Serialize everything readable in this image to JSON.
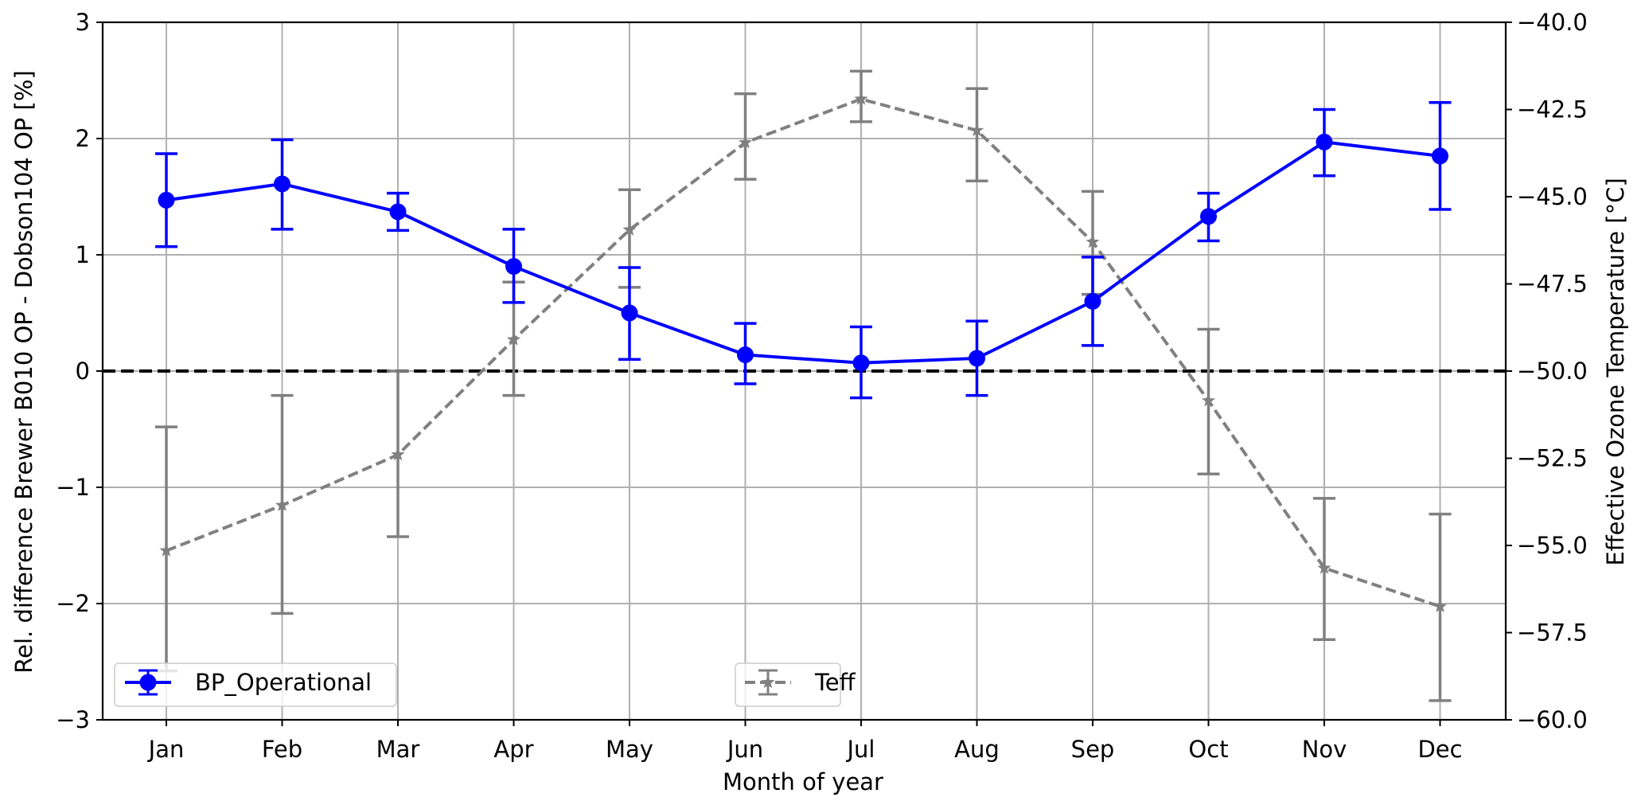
{
  "chart_data": {
    "type": "line",
    "xlabel": "Month of year",
    "ylabel_left": "Rel. difference Brewer B010 OP - Dobson104 OP [%]",
    "ylabel_right": "Effective Ozone Temperature [°C]",
    "categories": [
      "Jan",
      "Feb",
      "Mar",
      "Apr",
      "May",
      "Jun",
      "Jul",
      "Aug",
      "Sep",
      "Oct",
      "Nov",
      "Dec"
    ],
    "ylim_left": [
      -3,
      3
    ],
    "yticks_left": [
      -3,
      -2,
      -1,
      0,
      1,
      2,
      3
    ],
    "yticklabels_left": [
      "−3",
      "−2",
      "−1",
      "0",
      "1",
      "2",
      "3"
    ],
    "ylim_right": [
      -60,
      -40
    ],
    "yticks_right": [
      -60,
      -57.5,
      -55,
      -52.5,
      -50,
      -47.5,
      -45,
      -42.5,
      -40
    ],
    "yticklabels_right": [
      "−60.0",
      "−57.5",
      "−55.0",
      "−52.5",
      "−50.0",
      "−47.5",
      "−45.0",
      "−42.5",
      "−40.0"
    ],
    "grid": true,
    "reference_line": {
      "y": 0,
      "style": "dashed",
      "color": "#000000"
    },
    "series": [
      {
        "name": "BP_Operational",
        "axis": "left",
        "color": "#0000ff",
        "marker": "circle",
        "linestyle": "solid",
        "values": [
          1.47,
          1.61,
          1.37,
          0.9,
          0.5,
          0.14,
          0.07,
          0.11,
          0.6,
          1.33,
          1.97,
          1.85
        ],
        "err_low": [
          1.07,
          1.22,
          1.21,
          0.59,
          0.1,
          -0.11,
          -0.23,
          -0.21,
          0.22,
          1.12,
          1.68,
          1.39
        ],
        "err_high": [
          1.87,
          1.99,
          1.53,
          1.22,
          0.89,
          0.41,
          0.38,
          0.43,
          0.98,
          1.53,
          2.25,
          2.31
        ]
      },
      {
        "name": "Teff",
        "axis": "right",
        "color": "#808080",
        "marker": "star",
        "linestyle": "dashed",
        "values": [
          -55.15,
          -53.85,
          -52.4,
          -49.1,
          -45.95,
          -43.45,
          -42.2,
          -43.1,
          -46.3,
          -50.85,
          -55.65,
          -56.75
        ],
        "err_low": [
          -58.6,
          -56.95,
          -54.75,
          -50.7,
          -47.6,
          -44.5,
          -42.85,
          -44.55,
          -47.8,
          -52.95,
          -57.7,
          -59.45
        ],
        "err_high": [
          -51.6,
          -50.7,
          -50.0,
          -47.45,
          -44.8,
          -42.05,
          -41.4,
          -41.9,
          -44.85,
          -48.8,
          -53.65,
          -54.1
        ]
      }
    ],
    "legends": [
      {
        "series": "BP_Operational",
        "placement": "lower left"
      },
      {
        "series": "Teff",
        "placement": "lower center"
      }
    ]
  }
}
